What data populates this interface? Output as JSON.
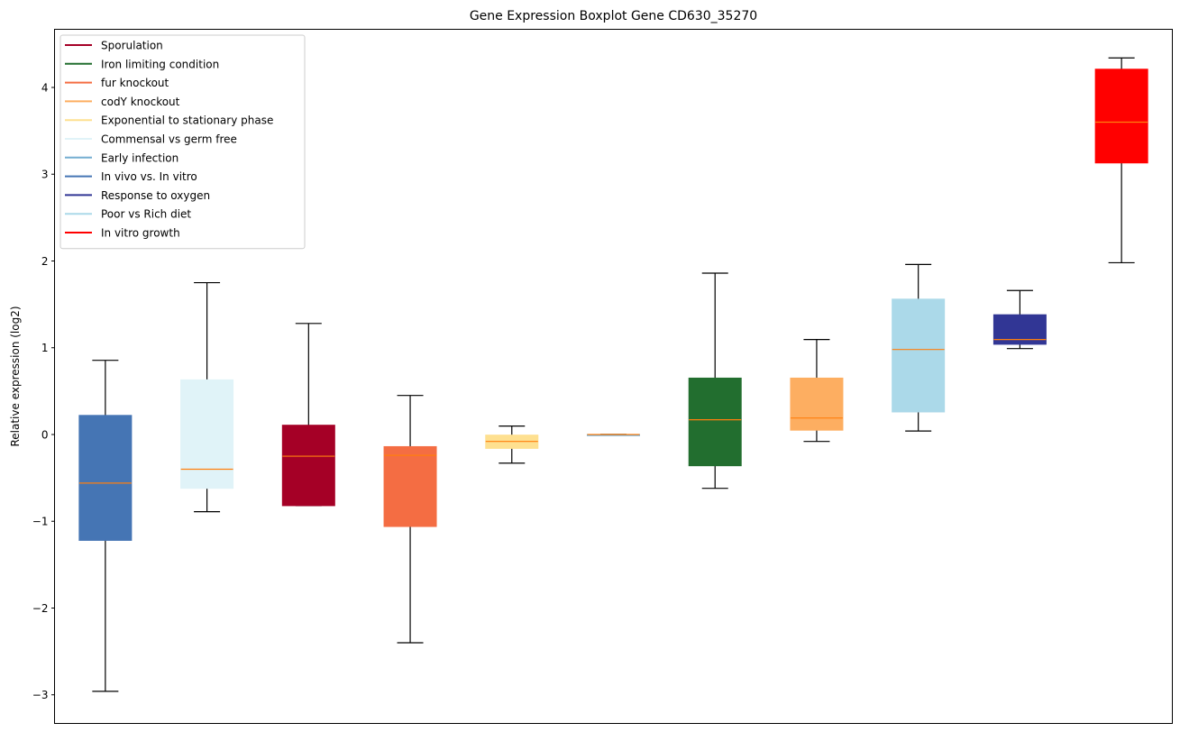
{
  "chart_data": {
    "type": "boxplot",
    "title": "Gene Expression Boxplot Gene CD630_35270",
    "xlabel": "",
    "ylabel": "Relative expression (log2)",
    "ylim": [
      -3.33,
      4.67
    ],
    "xlim": [
      0.5,
      11.5
    ],
    "yticks": [
      -3,
      -2,
      -1,
      0,
      1,
      2,
      3,
      4
    ],
    "ytick_labels": [
      "−3",
      "−2",
      "−1",
      "0",
      "1",
      "2",
      "3",
      "4"
    ],
    "grid": false,
    "legend_position": "top-left",
    "median_color": "#ff7f0e",
    "legend": [
      {
        "label": "Sporulation",
        "color": "#a50026"
      },
      {
        "label": "Iron limiting condition",
        "color": "#226e2f"
      },
      {
        "label": "fur knockout",
        "color": "#f46d43"
      },
      {
        "label": "codY knockout",
        "color": "#fdae61"
      },
      {
        "label": "Exponential to stationary phase",
        "color": "#fee090"
      },
      {
        "label": "Commensal vs germ free",
        "color": "#e0f3f8"
      },
      {
        "label": "Early infection",
        "color": "#74add1"
      },
      {
        "label": "In vivo vs. In vitro",
        "color": "#4575b4"
      },
      {
        "label": "Response to oxygen",
        "color": "#313695"
      },
      {
        "label": "Poor vs Rich diet",
        "color": "#abd9e9"
      },
      {
        "label": "In vitro growth",
        "color": "#ff0000"
      }
    ],
    "boxes": [
      {
        "name": "In vivo vs. In vitro",
        "color": "#4575b4",
        "whisker_low": -2.96,
        "q1": -1.22,
        "median": -0.56,
        "q3": 0.22,
        "whisker_high": 0.855
      },
      {
        "name": "Commensal vs germ free",
        "color": "#e0f3f8",
        "whisker_low": -0.89,
        "q1": -0.62,
        "median": -0.4,
        "q3": 0.63,
        "whisker_high": 1.75
      },
      {
        "name": "Sporulation",
        "color": "#a50026",
        "whisker_low": -0.82,
        "q1": -0.82,
        "median": -0.25,
        "q3": 0.107,
        "whisker_high": 1.28
      },
      {
        "name": "fur knockout",
        "color": "#f46d43",
        "whisker_low": -2.4,
        "q1": -1.06,
        "median": -0.24,
        "q3": -0.14,
        "whisker_high": 0.45
      },
      {
        "name": "Exponential to stationary phase",
        "color": "#fee090",
        "whisker_low": -0.33,
        "q1": -0.16,
        "median": -0.08,
        "q3": -0.007,
        "whisker_high": 0.097
      },
      {
        "name": "Early infection",
        "color": "#74add1",
        "whisker_low": 0.0,
        "q1": 0.0,
        "median": 0.0,
        "q3": 0.0,
        "whisker_high": 0.0
      },
      {
        "name": "Iron limiting condition",
        "color": "#226e2f",
        "whisker_low": -0.62,
        "q1": -0.36,
        "median": 0.17,
        "q3": 0.65,
        "whisker_high": 1.86
      },
      {
        "name": "codY knockout",
        "color": "#fdae61",
        "whisker_low": -0.08,
        "q1": 0.05,
        "median": 0.19,
        "q3": 0.65,
        "whisker_high": 1.095
      },
      {
        "name": "Poor vs Rich diet",
        "color": "#abd9e9",
        "whisker_low": 0.04,
        "q1": 0.26,
        "median": 0.98,
        "q3": 1.56,
        "whisker_high": 1.96
      },
      {
        "name": "Response to oxygen",
        "color": "#313695",
        "whisker_low": 0.99,
        "q1": 1.04,
        "median": 1.095,
        "q3": 1.38,
        "whisker_high": 1.66
      },
      {
        "name": "In vitro growth",
        "color": "#ff0000",
        "whisker_low": 1.98,
        "q1": 3.13,
        "median": 3.6,
        "q3": 4.21,
        "whisker_high": 4.34
      }
    ]
  }
}
